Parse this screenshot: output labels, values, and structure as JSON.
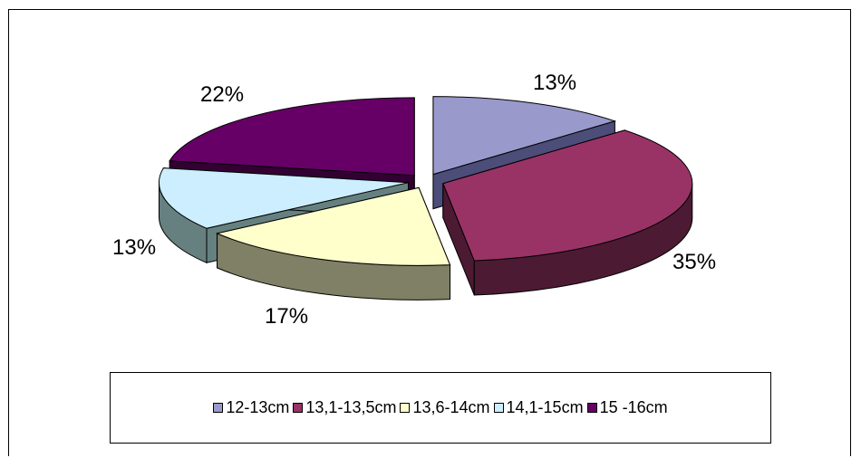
{
  "chart_data": {
    "type": "pie",
    "title": "",
    "legend_position": "bottom",
    "slices": [
      {
        "label": "12-13cm",
        "value": 13,
        "display": "13%",
        "color": "#9999cc",
        "side_color": "#4d4d7a"
      },
      {
        "label": "13,1-13,5cm",
        "value": 35,
        "display": "35%",
        "color": "#993366",
        "side_color": "#4d1a33"
      },
      {
        "label": "13,6-14cm",
        "value": 17,
        "display": "17%",
        "color": "#ffffcc",
        "side_color": "#808066"
      },
      {
        "label": "14,1-15cm",
        "value": 13,
        "display": "13%",
        "color": "#cceeff",
        "side_color": "#668080"
      },
      {
        "label": "15 -16cm",
        "value": 22,
        "display": "22%",
        "color": "#660066",
        "side_color": "#330033"
      }
    ]
  }
}
